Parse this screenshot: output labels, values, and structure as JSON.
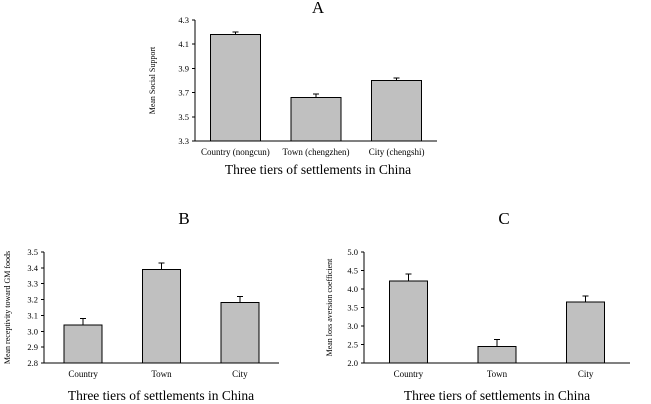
{
  "chart_data": [
    {
      "type": "bar",
      "panel": "A",
      "ylabel": "Mean Social Support",
      "xlabel": "Three tiers of settlements in China",
      "ylim": [
        3.3,
        4.3
      ],
      "yticks": [
        "3.3",
        "3.5",
        "3.7",
        "3.9",
        "4.1",
        "4.3"
      ],
      "categories": [
        "Country (nongcun)",
        "Town (chengzhen)",
        "City (chengshi)"
      ],
      "values": [
        4.18,
        3.66,
        3.8
      ],
      "errors": [
        0.02,
        0.03,
        0.02
      ],
      "bar_color": "#c0c0c0"
    },
    {
      "type": "bar",
      "panel": "B",
      "ylabel": "Mean receptivity toward GM foods",
      "xlabel": "Three tiers of settlements in China",
      "ylim": [
        2.8,
        3.5
      ],
      "yticks": [
        "2.8",
        "2.9",
        "3.0",
        "3.1",
        "3.2",
        "3.3",
        "3.4",
        "3.5"
      ],
      "categories": [
        "Country",
        "Town",
        "City"
      ],
      "values": [
        3.04,
        3.39,
        3.18
      ],
      "errors": [
        0.04,
        0.04,
        0.04
      ],
      "bar_color": "#c0c0c0"
    },
    {
      "type": "bar",
      "panel": "C",
      "ylabel": "Mean loss aversion coefficient",
      "xlabel": "Three tiers of settlements in China",
      "ylim": [
        2.0,
        5.0
      ],
      "yticks": [
        "2.0",
        "2.5",
        "3.0",
        "3.5",
        "4.0",
        "4.5",
        "5.0"
      ],
      "categories": [
        "Country",
        "Town",
        "City"
      ],
      "values": [
        4.22,
        2.45,
        3.65
      ],
      "errors": [
        0.18,
        0.18,
        0.16
      ],
      "bar_color": "#c0c0c0"
    }
  ]
}
